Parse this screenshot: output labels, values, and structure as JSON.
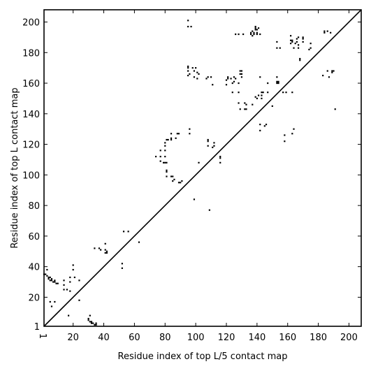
{
  "chart_data": {
    "type": "scatter",
    "xlabel": "Residue index of top L/5 contact map",
    "ylabel": "Residue index of top L contact map",
    "xlim": [
      1,
      208
    ],
    "ylim": [
      1,
      208
    ],
    "x_ticks": [
      1,
      20,
      40,
      60,
      80,
      100,
      120,
      140,
      160,
      180,
      200
    ],
    "y_ticks": [
      1,
      20,
      40,
      60,
      80,
      100,
      120,
      140,
      160,
      180,
      200
    ],
    "diagonal": true,
    "grid": false,
    "series": [
      {
        "color": "#000000",
        "points": [
          [
            1,
            35
          ],
          [
            2,
            35
          ],
          [
            3,
            34
          ],
          [
            4,
            33
          ],
          [
            5,
            33
          ],
          [
            6,
            32
          ],
          [
            3,
            38
          ],
          [
            4,
            32
          ],
          [
            5,
            31
          ],
          [
            6,
            31
          ],
          [
            7,
            30
          ],
          [
            8,
            30
          ],
          [
            9,
            29
          ],
          [
            10,
            29
          ],
          [
            8,
            31
          ],
          [
            5,
            17
          ],
          [
            8,
            17
          ],
          [
            6,
            14
          ],
          [
            14,
            31
          ],
          [
            14,
            28
          ],
          [
            14,
            25
          ],
          [
            16,
            25
          ],
          [
            18,
            24
          ],
          [
            18,
            30
          ],
          [
            18,
            33
          ],
          [
            21,
            33
          ],
          [
            20,
            38
          ],
          [
            20,
            41
          ],
          [
            17,
            8
          ],
          [
            24,
            31
          ],
          [
            24,
            18
          ],
          [
            30,
            5
          ],
          [
            30,
            6
          ],
          [
            31,
            4
          ],
          [
            31,
            8
          ],
          [
            32,
            3
          ],
          [
            32,
            4
          ],
          [
            33,
            3
          ],
          [
            34,
            2
          ],
          [
            35,
            2
          ],
          [
            35,
            3
          ],
          [
            34,
            52
          ],
          [
            37,
            52
          ],
          [
            38,
            51
          ],
          [
            41,
            49
          ],
          [
            42,
            49
          ],
          [
            41,
            51
          ],
          [
            42,
            50
          ],
          [
            41,
            55
          ],
          [
            52,
            42
          ],
          [
            52,
            39
          ],
          [
            53,
            63
          ],
          [
            56,
            63
          ],
          [
            63,
            56
          ],
          [
            74,
            112
          ],
          [
            77,
            112
          ],
          [
            77,
            116
          ],
          [
            77,
            109
          ],
          [
            79,
            108
          ],
          [
            80,
            108
          ],
          [
            81,
            108
          ],
          [
            80,
            112
          ],
          [
            80,
            116
          ],
          [
            80,
            119
          ],
          [
            80,
            121
          ],
          [
            81,
            123
          ],
          [
            81,
            102
          ],
          [
            81,
            103
          ],
          [
            81,
            99
          ],
          [
            82,
            123
          ],
          [
            84,
            124
          ],
          [
            84,
            123
          ],
          [
            84,
            127
          ],
          [
            84,
            99
          ],
          [
            85,
            99
          ],
          [
            85,
            96
          ],
          [
            86,
            97
          ],
          [
            87,
            124
          ],
          [
            88,
            127
          ],
          [
            89,
            127
          ],
          [
            89,
            95
          ],
          [
            90,
            95
          ],
          [
            91,
            96
          ],
          [
            95,
            170
          ],
          [
            95,
            171
          ],
          [
            95,
            168
          ],
          [
            95,
            165
          ],
          [
            96,
            166
          ],
          [
            96,
            127
          ],
          [
            96,
            130
          ],
          [
            98,
            170
          ],
          [
            99,
            168
          ],
          [
            99,
            164
          ],
          [
            100,
            170
          ],
          [
            101,
            167
          ],
          [
            101,
            163
          ],
          [
            102,
            108
          ],
          [
            102,
            166
          ],
          [
            99,
            84
          ],
          [
            97,
            197
          ],
          [
            95,
            197
          ],
          [
            95,
            201
          ],
          [
            107,
            163
          ],
          [
            108,
            164
          ],
          [
            108,
            122
          ],
          [
            108,
            123
          ],
          [
            108,
            119
          ],
          [
            109,
            77
          ],
          [
            110,
            164
          ],
          [
            111,
            159
          ],
          [
            111,
            118
          ],
          [
            112,
            119
          ],
          [
            112,
            121
          ],
          [
            116,
            108
          ],
          [
            116,
            111
          ],
          [
            116,
            112
          ],
          [
            120,
            159
          ],
          [
            120,
            162
          ],
          [
            121,
            163
          ],
          [
            121,
            164
          ],
          [
            123,
            163
          ],
          [
            124,
            160
          ],
          [
            124,
            154
          ],
          [
            125,
            161
          ],
          [
            125,
            164
          ],
          [
            126,
            163
          ],
          [
            126,
            192
          ],
          [
            128,
            192
          ],
          [
            128,
            160
          ],
          [
            128,
            154
          ],
          [
            128,
            147
          ],
          [
            129,
            143
          ],
          [
            129,
            166
          ],
          [
            129,
            168
          ],
          [
            130,
            168
          ],
          [
            130,
            164
          ],
          [
            130,
            166
          ],
          [
            131,
            192
          ],
          [
            132,
            147
          ],
          [
            132,
            143
          ],
          [
            133,
            143
          ],
          [
            133,
            146
          ],
          [
            136,
            192
          ],
          [
            136,
            193
          ],
          [
            137,
            191
          ],
          [
            137,
            194
          ],
          [
            138,
            192
          ],
          [
            138,
            193
          ],
          [
            139,
            195
          ],
          [
            139,
            196
          ],
          [
            139,
            197
          ],
          [
            140,
            192
          ],
          [
            140,
            193
          ],
          [
            140,
            195
          ],
          [
            141,
            196
          ],
          [
            137,
            146
          ],
          [
            139,
            151
          ],
          [
            140,
            150
          ],
          [
            141,
            152
          ],
          [
            142,
            192
          ],
          [
            142,
            133
          ],
          [
            142,
            129
          ],
          [
            142,
            164
          ],
          [
            143,
            150
          ],
          [
            143,
            152
          ],
          [
            143,
            154
          ],
          [
            144,
            154
          ],
          [
            145,
            132
          ],
          [
            146,
            133
          ],
          [
            147,
            154
          ],
          [
            147,
            160
          ],
          [
            150,
            145
          ],
          [
            153,
            160
          ],
          [
            153,
            161
          ],
          [
            153,
            164
          ],
          [
            154,
            160
          ],
          [
            154,
            161
          ],
          [
            153,
            183
          ],
          [
            153,
            187
          ],
          [
            155,
            183
          ],
          [
            157,
            154
          ],
          [
            158,
            122
          ],
          [
            158,
            126
          ],
          [
            159,
            154
          ],
          [
            162,
            191
          ],
          [
            162,
            188
          ],
          [
            162,
            186
          ],
          [
            163,
            188
          ],
          [
            163,
            187
          ],
          [
            163,
            154
          ],
          [
            163,
            127
          ],
          [
            164,
            183
          ],
          [
            164,
            130
          ],
          [
            165,
            186
          ],
          [
            166,
            187
          ],
          [
            166,
            189
          ],
          [
            167,
            185
          ],
          [
            167,
            190
          ],
          [
            167,
            183
          ],
          [
            168,
            175
          ],
          [
            168,
            176
          ],
          [
            170,
            189
          ],
          [
            170,
            187
          ],
          [
            170,
            190
          ],
          [
            174,
            182
          ],
          [
            175,
            183
          ],
          [
            175,
            186
          ],
          [
            183,
            165
          ],
          [
            184,
            194
          ],
          [
            184,
            193
          ],
          [
            186,
            168
          ],
          [
            186,
            194
          ],
          [
            187,
            164
          ],
          [
            188,
            193
          ],
          [
            189,
            167
          ],
          [
            189,
            168
          ],
          [
            190,
            168
          ],
          [
            191,
            143
          ]
        ]
      }
    ]
  }
}
